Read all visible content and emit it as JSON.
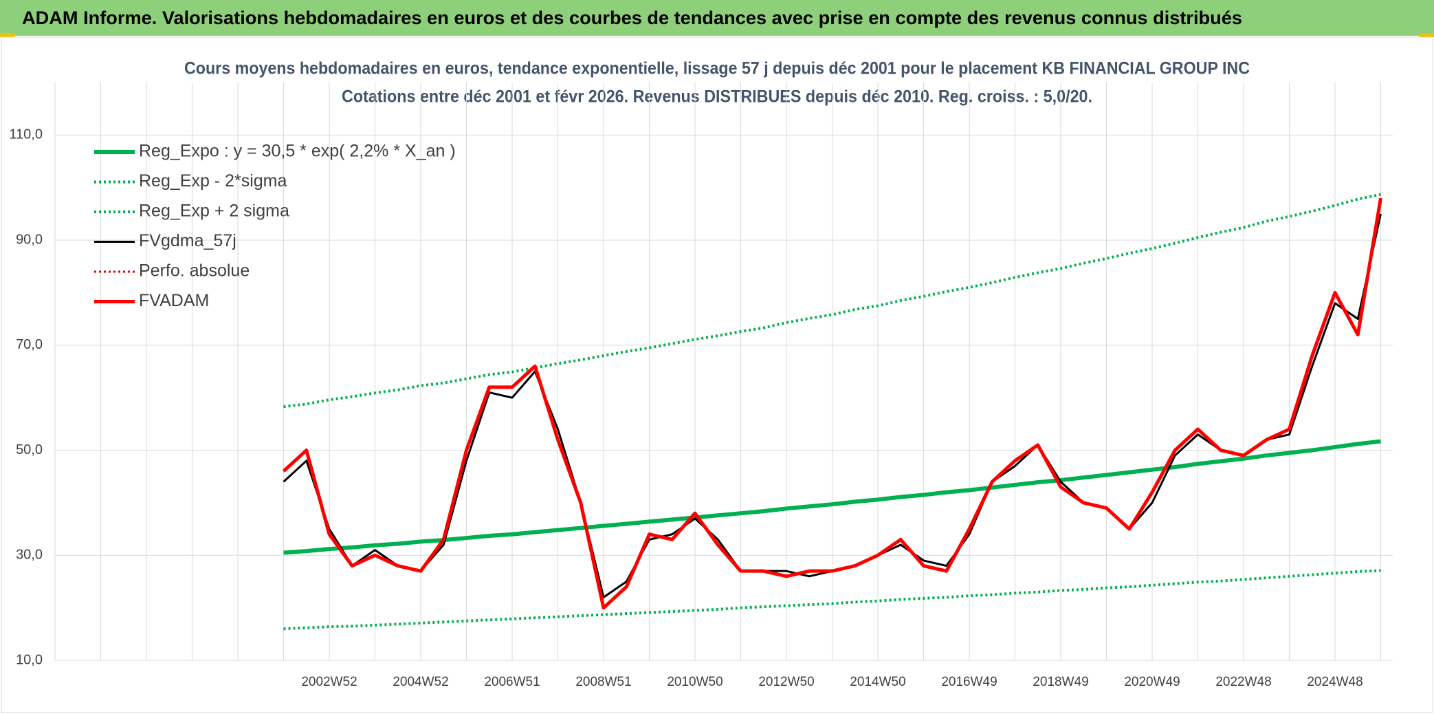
{
  "header": {
    "title": "ADAM Informe. Valorisations hebdomadaires en euros et des courbes de tendances avec prise en compte des revenus connus distribués"
  },
  "chart_data": {
    "type": "line",
    "title": "Cours moyens hebdomadaires en euros, tendance exponentielle, lissage 57 j depuis déc 2001 pour le placement KB FINANCIAL GROUP INC",
    "subtitle": "Cotations entre déc 2001 et févr 2026. Revenus DISTRIBUES depuis déc 2010. Reg. croiss. : 5,0/20.",
    "categories": [
      null,
      null,
      null,
      null,
      null,
      null,
      null,
      null,
      null,
      null,
      null,
      null,
      "2002W52",
      null,
      null,
      null,
      "2004W52",
      null,
      null,
      null,
      "2006W51",
      null,
      null,
      null,
      "2008W51",
      null,
      null,
      null,
      "2010W50",
      null,
      null,
      null,
      "2012W50",
      null,
      null,
      null,
      "2014W50",
      null,
      null,
      null,
      "2016W49",
      null,
      null,
      null,
      "2018W49",
      null,
      null,
      null,
      "2020W49",
      null,
      null,
      null,
      "2022W48",
      null,
      null,
      null,
      "2024W48",
      null,
      null
    ],
    "ylim": [
      10,
      120
    ],
    "yticks": [
      {
        "value": 10,
        "label": "10,0"
      },
      {
        "value": 30,
        "label": "30,0"
      },
      {
        "value": 50,
        "label": "50,0"
      },
      {
        "value": 70,
        "label": "70,0"
      },
      {
        "value": 90,
        "label": "90,0"
      },
      {
        "value": 110,
        "label": "110,0"
      }
    ],
    "grid": true,
    "legend": "top-left",
    "series": [
      {
        "name": "Reg_Expo : y = 30,5 * exp( 2,2% *  X_an )",
        "color": "#00b050",
        "style": "solid",
        "width": 6,
        "values": [
          null,
          null,
          null,
          null,
          null,
          null,
          null,
          null,
          null,
          null,
          30.5,
          30.8,
          31.2,
          31.5,
          31.9,
          32.2,
          32.6,
          32.9,
          33.3,
          33.7,
          34.0,
          34.4,
          34.8,
          35.2,
          35.6,
          36.0,
          36.4,
          36.8,
          37.2,
          37.6,
          38.0,
          38.4,
          38.9,
          39.3,
          39.7,
          40.2,
          40.6,
          41.1,
          41.5,
          42.0,
          42.4,
          42.9,
          43.4,
          43.9,
          44.3,
          44.8,
          45.3,
          45.8,
          46.3,
          46.8,
          47.4,
          47.9,
          48.4,
          49.0,
          49.5,
          50.0,
          50.6,
          51.2,
          51.7
        ]
      },
      {
        "name": "Reg_Exp - 2*sigma",
        "color": "#00b050",
        "style": "dotted",
        "width": 4,
        "values": [
          null,
          null,
          null,
          null,
          null,
          null,
          null,
          null,
          null,
          null,
          16.0,
          16.2,
          16.4,
          16.5,
          16.7,
          16.9,
          17.1,
          17.3,
          17.5,
          17.7,
          17.9,
          18.1,
          18.3,
          18.5,
          18.7,
          18.9,
          19.1,
          19.3,
          19.5,
          19.7,
          20.0,
          20.2,
          20.4,
          20.6,
          20.8,
          21.1,
          21.3,
          21.6,
          21.8,
          22.0,
          22.3,
          22.5,
          22.8,
          23.0,
          23.3,
          23.5,
          23.8,
          24.0,
          24.3,
          24.6,
          24.9,
          25.1,
          25.4,
          25.7,
          26.0,
          26.3,
          26.6,
          26.9,
          27.1
        ]
      },
      {
        "name": "Reg_Exp + 2 sigma",
        "color": "#00b050",
        "style": "dotted",
        "width": 4,
        "values": [
          null,
          null,
          null,
          null,
          null,
          null,
          null,
          null,
          null,
          null,
          58.3,
          58.8,
          59.6,
          60.2,
          60.9,
          61.5,
          62.3,
          62.8,
          63.6,
          64.4,
          64.9,
          65.7,
          66.5,
          67.2,
          68.0,
          68.8,
          69.5,
          70.3,
          71.1,
          71.8,
          72.6,
          73.3,
          74.3,
          75.1,
          75.8,
          76.8,
          77.5,
          78.5,
          79.3,
          80.2,
          81.0,
          81.9,
          82.9,
          83.8,
          84.6,
          85.6,
          86.5,
          87.5,
          88.4,
          89.4,
          90.5,
          91.5,
          92.4,
          93.6,
          94.5,
          95.5,
          96.6,
          97.8,
          98.7
        ]
      },
      {
        "name": "FVgdma_57j",
        "color": "#000000",
        "style": "solid",
        "width": 3,
        "values": [
          null,
          null,
          null,
          null,
          null,
          null,
          null,
          null,
          null,
          null,
          44,
          48,
          35,
          28,
          31,
          28,
          27,
          32,
          48,
          61,
          60,
          65,
          54,
          40,
          22,
          25,
          33,
          34,
          37,
          33,
          27,
          27,
          27,
          26,
          27,
          28,
          30,
          32,
          29,
          28,
          34,
          44,
          47,
          51,
          44,
          40,
          39,
          35,
          40,
          49,
          53,
          50,
          49,
          52,
          53,
          66,
          78,
          75,
          95
        ]
      },
      {
        "name": "Perfo. absolue",
        "color": "#e00000",
        "style": "dotted",
        "width": 3,
        "values": [
          null,
          null,
          null,
          null,
          null,
          null,
          null,
          null,
          null,
          null,
          null,
          null,
          null,
          null,
          null,
          null,
          null,
          null,
          null,
          null,
          null,
          null,
          null,
          null,
          null,
          null,
          null,
          null,
          null,
          null,
          null,
          null,
          null,
          null,
          null,
          null,
          null,
          null,
          null,
          null,
          null,
          null,
          null,
          null,
          null,
          null,
          null,
          null,
          null,
          null,
          null,
          null,
          null,
          null,
          null,
          null,
          null,
          null,
          null
        ]
      },
      {
        "name": "FVADAM",
        "color": "#ff0000",
        "style": "solid",
        "width": 5,
        "values": [
          null,
          null,
          null,
          null,
          null,
          null,
          null,
          null,
          null,
          null,
          46,
          50,
          34,
          28,
          30,
          28,
          27,
          33,
          50,
          62,
          62,
          66,
          52,
          40,
          20,
          24,
          34,
          33,
          38,
          32,
          27,
          27,
          26,
          27,
          27,
          28,
          30,
          33,
          28,
          27,
          35,
          44,
          48,
          51,
          43,
          40,
          39,
          35,
          42,
          50,
          54,
          50,
          49,
          52,
          54,
          68,
          80,
          72,
          98
        ]
      }
    ]
  }
}
